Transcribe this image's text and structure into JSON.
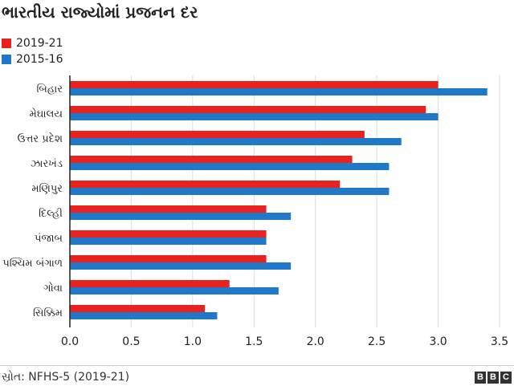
{
  "chart_data": {
    "type": "bar",
    "orientation": "horizontal",
    "title": "ભારતીય રાજ્યોમાં પ્રજનન દર",
    "categories": [
      "બિહાર",
      "મેઘાલય",
      "ઉત્તર પ્રદેશ",
      "ઝારખંડ",
      "મણિપુર",
      "દિલ્હી",
      "પંજાબ",
      "પશ્ચિમ બંગાળ",
      "ગોવા",
      "સિક્કિમ"
    ],
    "series": [
      {
        "name": "2019-21",
        "color": "#e8221f",
        "values": [
          3.0,
          2.9,
          2.4,
          2.3,
          2.2,
          1.6,
          1.6,
          1.6,
          1.3,
          1.1
        ]
      },
      {
        "name": "2015-16",
        "color": "#1f78c8",
        "values": [
          3.4,
          3.0,
          2.7,
          2.6,
          2.6,
          1.8,
          1.6,
          1.8,
          1.7,
          1.2
        ]
      }
    ],
    "xlim": [
      0,
      3.5
    ],
    "xticks": [
      "0.0",
      "0.5",
      "1.0",
      "1.5",
      "2.0",
      "2.5",
      "3.0",
      "3.5"
    ],
    "xticks_values": [
      0,
      0.5,
      1.0,
      1.5,
      2.0,
      2.5,
      3.0,
      3.5
    ],
    "grid": true,
    "legend_position": "top-left"
  },
  "footer": {
    "source": "સ્રોત: NFHS-5 (2019-21)",
    "logo": [
      "B",
      "B",
      "C"
    ]
  }
}
